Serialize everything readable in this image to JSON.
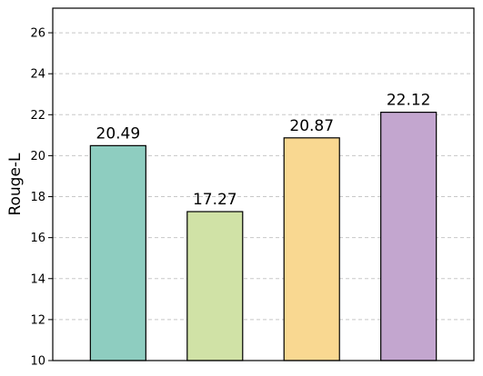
{
  "chart_data": {
    "type": "bar",
    "categories": [
      "",
      "",
      "",
      ""
    ],
    "values": [
      20.49,
      17.27,
      20.87,
      22.12
    ],
    "value_labels": [
      "20.49",
      "17.27",
      "20.87",
      "22.12"
    ],
    "colors": [
      "#8ecdc0",
      "#d0e2a6",
      "#f9d891",
      "#c3a6cf"
    ],
    "title": "",
    "xlabel": "",
    "ylabel": "Rouge-L",
    "ylim": [
      10,
      27.2
    ],
    "yticks": [
      10,
      12,
      14,
      16,
      18,
      20,
      22,
      24,
      26
    ],
    "ytick_labels": [
      "10",
      "12",
      "14",
      "16",
      "18",
      "20",
      "22",
      "24",
      "26"
    ],
    "grid": "horizontal-dashed",
    "legend": "none"
  }
}
